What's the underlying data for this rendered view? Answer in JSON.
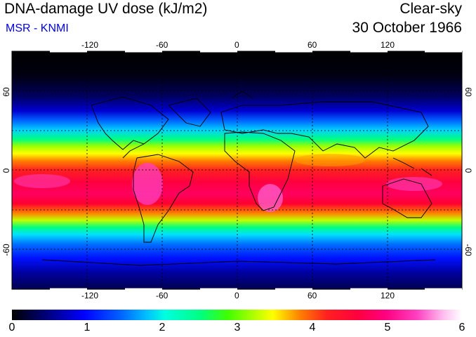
{
  "header": {
    "title": "DNA-damage UV dose (kJ/m2)",
    "subtitle": "MSR - KNMI",
    "mode": "Clear-sky",
    "date": "30 October 1966"
  },
  "map": {
    "lon_ticks": [
      "-120",
      "-60",
      "0",
      "60",
      "120"
    ],
    "lat_ticks": [
      "60",
      "0",
      "-60"
    ]
  },
  "colorbar": {
    "labels": [
      "0",
      "1",
      "2",
      "3",
      "4",
      "5",
      "6"
    ],
    "min": 0,
    "max": 6
  }
}
